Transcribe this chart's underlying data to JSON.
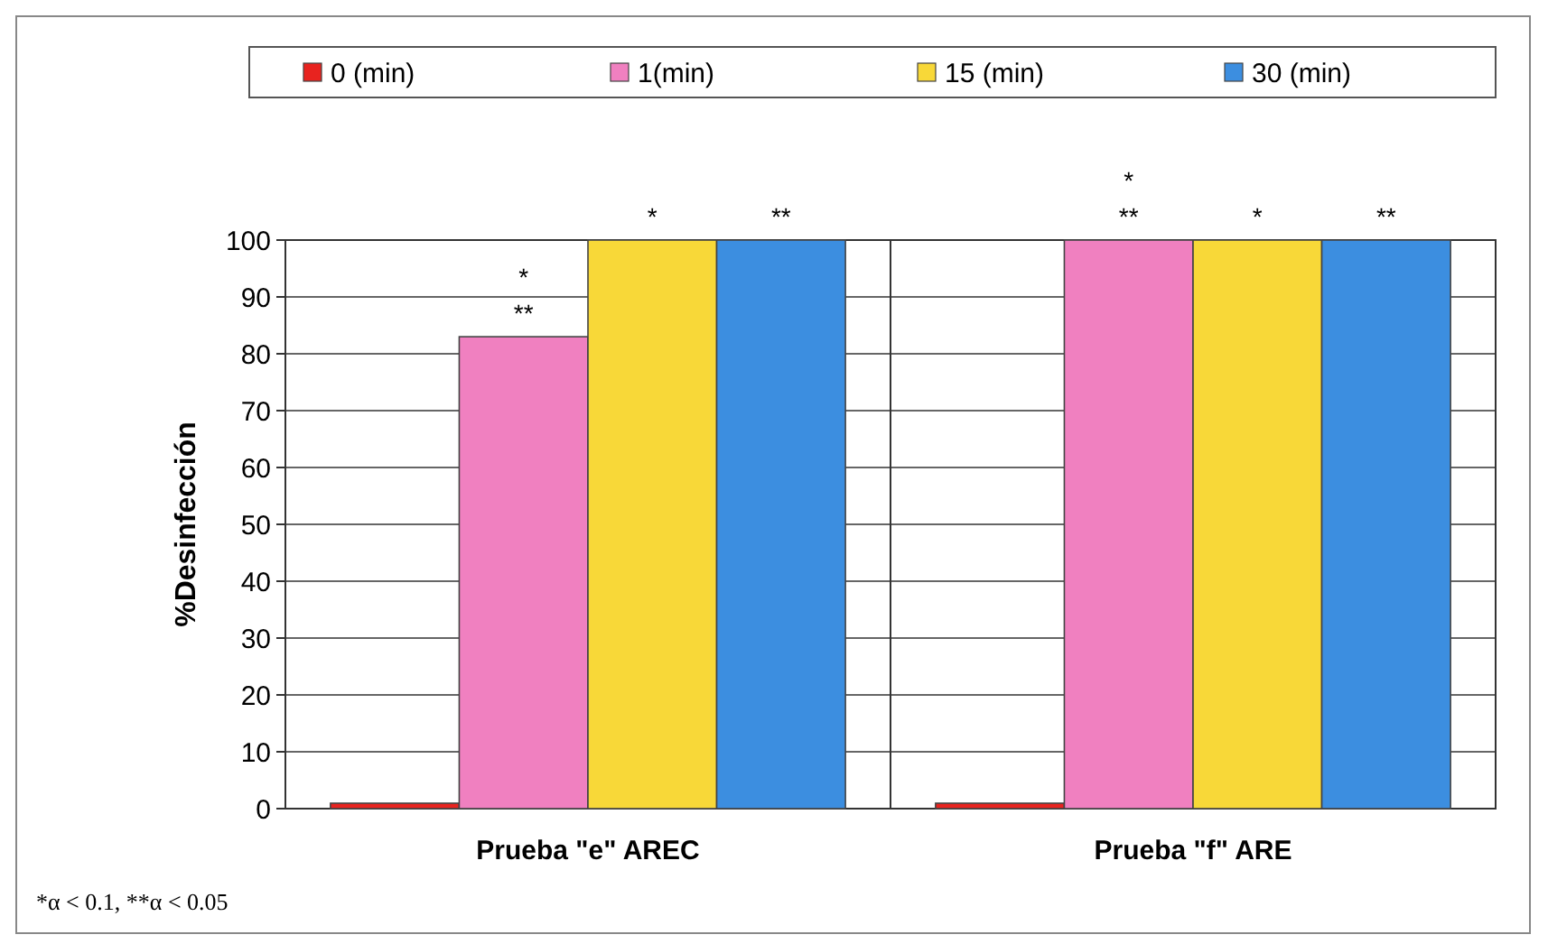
{
  "chart_data": {
    "type": "bar",
    "ylabel": "%Desinfección",
    "categories": [
      "Prueba \"e\" AREC",
      "Prueba \"f\" ARE"
    ],
    "series": [
      {
        "name": "0 (min)",
        "color": "#e8231f",
        "values": [
          0,
          0
        ]
      },
      {
        "name": "1(min)",
        "color": "#f080c0",
        "values": [
          83,
          100
        ],
        "value_labels": [
          "*\n**",
          "*\n**"
        ]
      },
      {
        "name": "15 (min)",
        "color": "#f8d838",
        "values": [
          100,
          100
        ],
        "value_labels": [
          "*",
          "*"
        ]
      },
      {
        "name": "30 (min)",
        "color": "#3c8ee0",
        "values": [
          100,
          100
        ],
        "value_labels": [
          "**",
          "**"
        ]
      }
    ],
    "ylim": [
      0,
      100
    ],
    "yticks": [
      0,
      10,
      20,
      30,
      40,
      50,
      60,
      70,
      80,
      90,
      100
    ],
    "grid": "y",
    "legend": "top",
    "annotations": [
      "*α < 0.1, **α < 0.05"
    ]
  }
}
